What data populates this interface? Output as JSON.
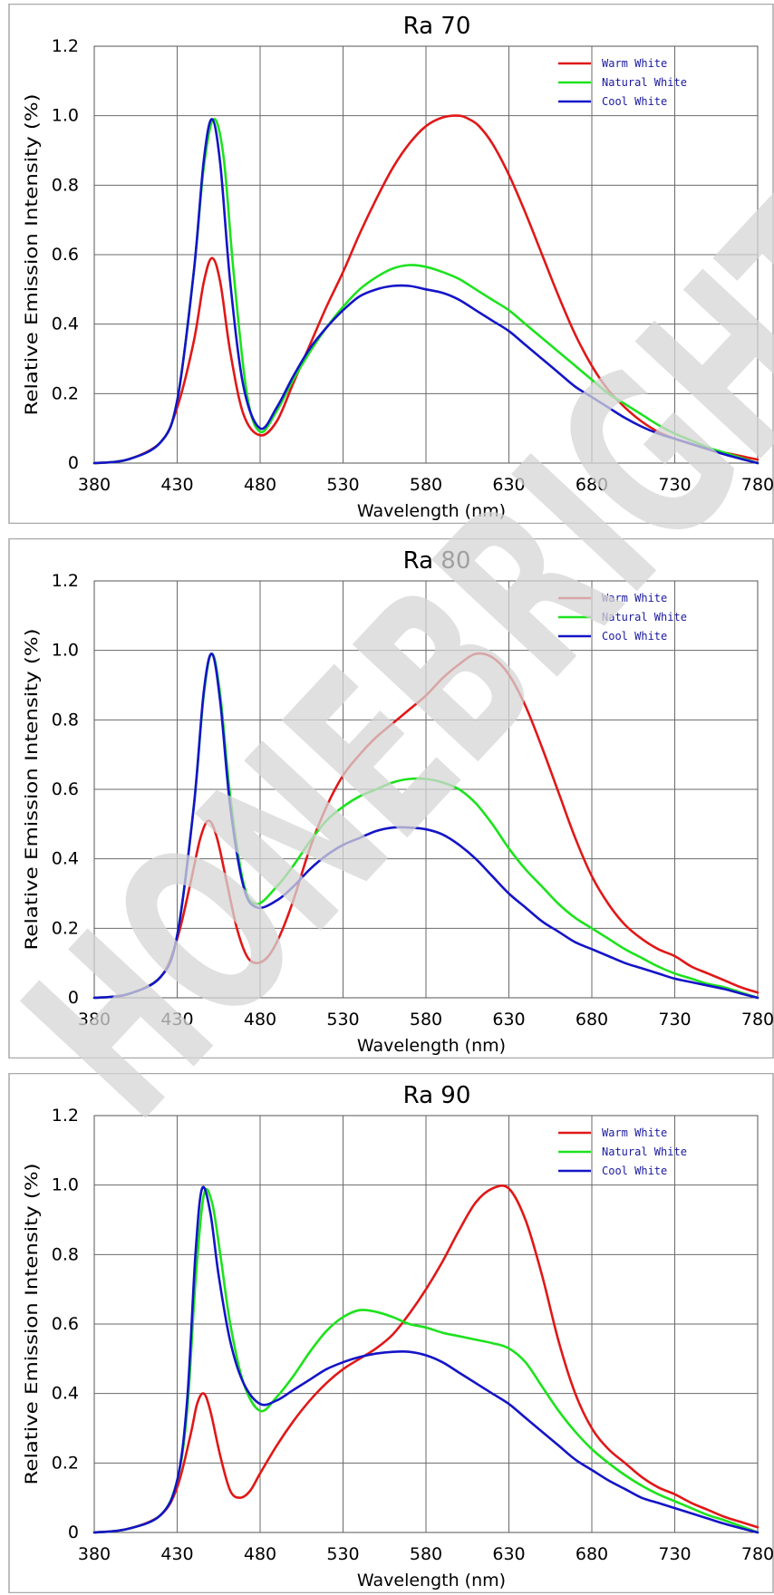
{
  "watermark": "HONEBRIGHT",
  "chart_data": [
    {
      "type": "line",
      "title": "Ra 70",
      "xlabel": "Wavelength (nm)",
      "ylabel": "Relative Emission Intensity (%)",
      "xlim": [
        380,
        780
      ],
      "ylim": [
        0,
        1.2
      ],
      "xticks": [
        380,
        430,
        480,
        530,
        580,
        630,
        680,
        730,
        780
      ],
      "yticks": [
        0,
        0.2,
        0.4,
        0.6,
        0.8,
        1.0,
        1.2
      ],
      "ytick_labels": [
        "0",
        "0.2",
        "0.4",
        "0.6",
        "0.8",
        "1.0",
        "1.2"
      ],
      "grid": true,
      "legend_position": "top-right",
      "series": [
        {
          "name": "Warm White",
          "color": "#e01818",
          "x": [
            380,
            400,
            420,
            430,
            440,
            446,
            451,
            456,
            462,
            470,
            480,
            490,
            500,
            510,
            520,
            530,
            540,
            550,
            560,
            570,
            580,
            590,
            600,
            606,
            612,
            620,
            630,
            640,
            650,
            660,
            670,
            680,
            690,
            700,
            710,
            720,
            730,
            740,
            750,
            760,
            770,
            780
          ],
          "y": [
            0,
            0.01,
            0.06,
            0.16,
            0.35,
            0.52,
            0.59,
            0.52,
            0.32,
            0.14,
            0.08,
            0.12,
            0.23,
            0.34,
            0.45,
            0.55,
            0.66,
            0.76,
            0.85,
            0.92,
            0.97,
            0.995,
            1.0,
            0.99,
            0.97,
            0.92,
            0.83,
            0.72,
            0.6,
            0.48,
            0.37,
            0.28,
            0.21,
            0.16,
            0.12,
            0.09,
            0.07,
            0.055,
            0.04,
            0.03,
            0.02,
            0.01
          ]
        },
        {
          "name": "Natural White",
          "color": "#1de21d",
          "x": [
            380,
            400,
            420,
            430,
            440,
            446,
            452,
            458,
            464,
            472,
            480,
            490,
            500,
            510,
            520,
            530,
            540,
            550,
            560,
            570,
            580,
            590,
            600,
            610,
            620,
            630,
            640,
            650,
            660,
            670,
            680,
            690,
            700,
            710,
            720,
            730,
            740,
            750,
            760,
            770,
            780
          ],
          "y": [
            0,
            0.01,
            0.06,
            0.18,
            0.55,
            0.85,
            0.99,
            0.88,
            0.55,
            0.2,
            0.09,
            0.15,
            0.24,
            0.32,
            0.39,
            0.45,
            0.5,
            0.535,
            0.56,
            0.57,
            0.565,
            0.55,
            0.53,
            0.5,
            0.47,
            0.44,
            0.4,
            0.36,
            0.32,
            0.28,
            0.24,
            0.2,
            0.17,
            0.14,
            0.11,
            0.085,
            0.065,
            0.045,
            0.03,
            0.015,
            0.0
          ]
        },
        {
          "name": "Cool White",
          "color": "#1414c8",
          "x": [
            380,
            400,
            420,
            430,
            440,
            446,
            451,
            456,
            462,
            470,
            480,
            490,
            500,
            510,
            520,
            530,
            540,
            550,
            560,
            570,
            580,
            590,
            600,
            610,
            620,
            630,
            640,
            650,
            660,
            670,
            680,
            690,
            700,
            710,
            720,
            730,
            740,
            750,
            760,
            770,
            780
          ],
          "y": [
            0,
            0.01,
            0.06,
            0.18,
            0.55,
            0.87,
            0.99,
            0.86,
            0.52,
            0.22,
            0.1,
            0.16,
            0.25,
            0.33,
            0.39,
            0.44,
            0.48,
            0.5,
            0.51,
            0.51,
            0.5,
            0.49,
            0.47,
            0.44,
            0.41,
            0.38,
            0.34,
            0.3,
            0.26,
            0.22,
            0.19,
            0.16,
            0.13,
            0.105,
            0.085,
            0.07,
            0.055,
            0.04,
            0.025,
            0.012,
            0.0
          ]
        }
      ]
    },
    {
      "type": "line",
      "title": "Ra 80",
      "xlabel": "Wavelength (nm)",
      "ylabel": "Relative Emission Intensity (%)",
      "xlim": [
        380,
        780
      ],
      "ylim": [
        0,
        1.2
      ],
      "xticks": [
        380,
        430,
        480,
        530,
        580,
        630,
        680,
        730,
        780
      ],
      "yticks": [
        0,
        0.2,
        0.4,
        0.6,
        0.8,
        1.0,
        1.2
      ],
      "ytick_labels": [
        "0",
        "0.2",
        "0.4",
        "0.6",
        "0.8",
        "1.0",
        "1.2"
      ],
      "grid": true,
      "legend_position": "top-right",
      "series": [
        {
          "name": "Warm White",
          "color": "#e01818",
          "x": [
            380,
            400,
            420,
            430,
            438,
            444,
            449,
            454,
            460,
            466,
            472,
            478,
            485,
            492,
            500,
            510,
            520,
            530,
            540,
            550,
            560,
            570,
            580,
            590,
            600,
            610,
            620,
            630,
            640,
            650,
            660,
            670,
            680,
            690,
            700,
            710,
            720,
            730,
            740,
            750,
            760,
            770,
            780
          ],
          "y": [
            0,
            0.01,
            0.06,
            0.17,
            0.33,
            0.46,
            0.51,
            0.46,
            0.33,
            0.2,
            0.12,
            0.1,
            0.12,
            0.18,
            0.28,
            0.43,
            0.55,
            0.64,
            0.7,
            0.75,
            0.79,
            0.83,
            0.87,
            0.92,
            0.96,
            0.99,
            0.98,
            0.93,
            0.84,
            0.72,
            0.59,
            0.46,
            0.35,
            0.27,
            0.21,
            0.17,
            0.14,
            0.12,
            0.09,
            0.07,
            0.05,
            0.03,
            0.015
          ]
        },
        {
          "name": "Natural White",
          "color": "#1de21d",
          "x": [
            380,
            400,
            420,
            430,
            440,
            446,
            451,
            456,
            462,
            470,
            478,
            490,
            500,
            510,
            520,
            530,
            540,
            550,
            560,
            570,
            580,
            590,
            600,
            610,
            620,
            630,
            640,
            650,
            660,
            670,
            680,
            690,
            700,
            710,
            720,
            730,
            740,
            750,
            760,
            770,
            780
          ],
          "y": [
            0,
            0.01,
            0.06,
            0.18,
            0.55,
            0.87,
            0.99,
            0.87,
            0.58,
            0.33,
            0.27,
            0.32,
            0.38,
            0.45,
            0.51,
            0.55,
            0.58,
            0.6,
            0.62,
            0.63,
            0.63,
            0.62,
            0.6,
            0.56,
            0.5,
            0.43,
            0.37,
            0.32,
            0.27,
            0.23,
            0.2,
            0.17,
            0.14,
            0.115,
            0.09,
            0.07,
            0.055,
            0.04,
            0.03,
            0.015,
            0.0
          ]
        },
        {
          "name": "Cool White",
          "color": "#1414c8",
          "x": [
            380,
            400,
            420,
            430,
            440,
            446,
            451,
            456,
            462,
            470,
            478,
            490,
            500,
            510,
            520,
            530,
            540,
            550,
            560,
            570,
            580,
            590,
            600,
            610,
            620,
            630,
            640,
            650,
            660,
            670,
            680,
            690,
            700,
            710,
            720,
            730,
            740,
            750,
            760,
            770,
            780
          ],
          "y": [
            0,
            0.01,
            0.06,
            0.18,
            0.55,
            0.88,
            0.99,
            0.85,
            0.55,
            0.32,
            0.26,
            0.28,
            0.32,
            0.37,
            0.41,
            0.44,
            0.46,
            0.48,
            0.49,
            0.49,
            0.485,
            0.47,
            0.44,
            0.4,
            0.35,
            0.3,
            0.26,
            0.22,
            0.19,
            0.16,
            0.14,
            0.12,
            0.1,
            0.085,
            0.07,
            0.055,
            0.045,
            0.035,
            0.025,
            0.012,
            0.0
          ]
        }
      ]
    },
    {
      "type": "line",
      "title": "Ra 90",
      "xlabel": "Wavelength (nm)",
      "ylabel": "Relative Emission Intensity (%)",
      "xlim": [
        380,
        780
      ],
      "ylim": [
        0,
        1.2
      ],
      "xticks": [
        380,
        430,
        480,
        530,
        580,
        630,
        680,
        730,
        780
      ],
      "yticks": [
        0,
        0.2,
        0.4,
        0.6,
        0.8,
        1.0,
        1.2
      ],
      "ytick_labels": [
        "0",
        "0.2",
        "0.4",
        "0.6",
        "0.8",
        "1.0",
        "1.2"
      ],
      "grid": true,
      "legend_position": "top-right",
      "series": [
        {
          "name": "Warm White",
          "color": "#e01818",
          "x": [
            380,
            400,
            420,
            430,
            438,
            442,
            446,
            450,
            456,
            462,
            468,
            474,
            480,
            490,
            500,
            510,
            520,
            530,
            540,
            550,
            560,
            570,
            580,
            590,
            600,
            610,
            620,
            630,
            640,
            650,
            660,
            670,
            680,
            690,
            700,
            710,
            720,
            730,
            740,
            750,
            760,
            770,
            780
          ],
          "y": [
            0,
            0.01,
            0.05,
            0.13,
            0.28,
            0.37,
            0.4,
            0.35,
            0.22,
            0.12,
            0.1,
            0.12,
            0.17,
            0.25,
            0.32,
            0.38,
            0.43,
            0.47,
            0.5,
            0.53,
            0.57,
            0.63,
            0.7,
            0.78,
            0.87,
            0.95,
            0.99,
            0.99,
            0.9,
            0.74,
            0.55,
            0.4,
            0.3,
            0.24,
            0.2,
            0.16,
            0.13,
            0.11,
            0.085,
            0.065,
            0.045,
            0.03,
            0.015
          ]
        },
        {
          "name": "Natural White",
          "color": "#1de21d",
          "x": [
            380,
            400,
            420,
            430,
            436,
            441,
            446,
            451,
            456,
            462,
            470,
            480,
            490,
            500,
            510,
            520,
            530,
            540,
            550,
            560,
            570,
            580,
            590,
            600,
            610,
            620,
            630,
            640,
            650,
            660,
            670,
            680,
            690,
            700,
            710,
            720,
            730,
            740,
            750,
            760,
            770,
            780
          ],
          "y": [
            0,
            0.01,
            0.05,
            0.15,
            0.35,
            0.72,
            0.97,
            0.95,
            0.8,
            0.6,
            0.43,
            0.35,
            0.39,
            0.45,
            0.52,
            0.58,
            0.62,
            0.64,
            0.635,
            0.62,
            0.6,
            0.59,
            0.575,
            0.565,
            0.555,
            0.545,
            0.53,
            0.49,
            0.42,
            0.35,
            0.29,
            0.24,
            0.2,
            0.165,
            0.135,
            0.11,
            0.09,
            0.07,
            0.05,
            0.035,
            0.018,
            0.0
          ]
        },
        {
          "name": "Cool White",
          "color": "#1414c8",
          "x": [
            380,
            400,
            420,
            430,
            436,
            441,
            445,
            450,
            455,
            462,
            470,
            480,
            490,
            500,
            510,
            520,
            530,
            540,
            550,
            560,
            570,
            580,
            590,
            600,
            610,
            620,
            630,
            640,
            650,
            660,
            670,
            680,
            690,
            700,
            710,
            720,
            730,
            740,
            750,
            760,
            770,
            780
          ],
          "y": [
            0,
            0.01,
            0.05,
            0.15,
            0.38,
            0.8,
            0.99,
            0.92,
            0.74,
            0.55,
            0.43,
            0.37,
            0.38,
            0.41,
            0.44,
            0.47,
            0.49,
            0.505,
            0.515,
            0.52,
            0.52,
            0.51,
            0.49,
            0.46,
            0.43,
            0.4,
            0.37,
            0.33,
            0.29,
            0.25,
            0.21,
            0.18,
            0.15,
            0.125,
            0.1,
            0.085,
            0.07,
            0.055,
            0.04,
            0.025,
            0.012,
            0.0
          ]
        }
      ]
    }
  ]
}
